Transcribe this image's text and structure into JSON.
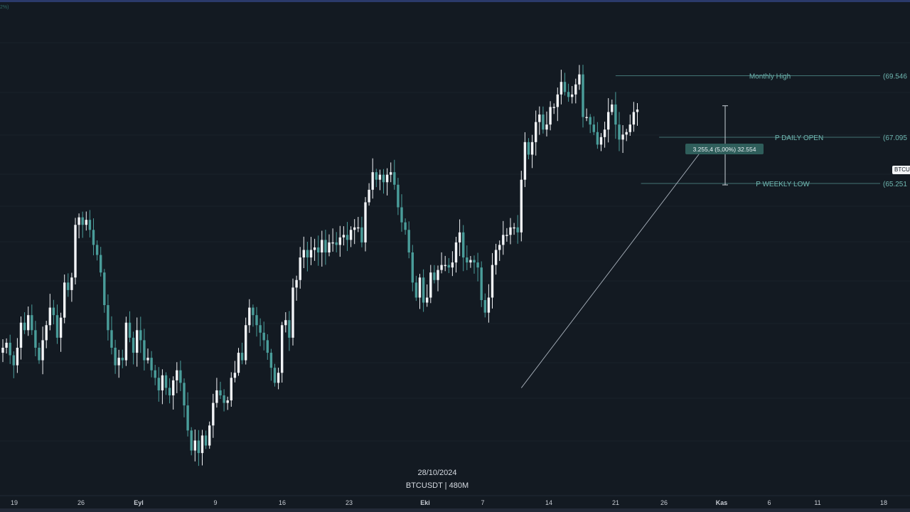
{
  "corner_label": "2%)",
  "watermark": {
    "date": "28/10/2024",
    "symbol": "BTCUSDT | 480M"
  },
  "symbol_badge": "BTCUSDT",
  "colors": {
    "background": "#131a22",
    "bull_candle": "#f2f4f7",
    "bear_candle": "#4a9d9a",
    "level_line": "#5fa8a3",
    "level_text": "#6fb7b1",
    "measure_box": "#2f5e5b",
    "axis_text": "#c7ccd3"
  },
  "chart_data": {
    "type": "candlestick",
    "symbol": "BTCUSDT",
    "interval": "480M",
    "x_axis_ticks": [
      "19",
      "26",
      "Eyl",
      "9",
      "16",
      "23",
      "Eki",
      "7",
      "14",
      "21",
      "26",
      "Kas",
      "6",
      "11",
      "18"
    ],
    "levels": [
      {
        "name": "Monthly High",
        "value_label": "(69.546"
      },
      {
        "name": "P DAILY OPEN",
        "value_label": "(67.095"
      },
      {
        "name": "P WEEKLY LOW",
        "value_label": "(65.251"
      }
    ],
    "measure_label": "3.255,4 (5,00%) 32.554",
    "trendline": {
      "from": 57100,
      "to": 66800
    },
    "ylim": [
      53000,
      72000
    ],
    "closes": [
      58700,
      58900,
      58400,
      58000,
      58700,
      59700,
      59400,
      60000,
      59400,
      58700,
      58200,
      59000,
      59600,
      60300,
      60000,
      59100,
      59900,
      61300,
      61000,
      61500,
      63600,
      63900,
      63600,
      63800,
      63400,
      62800,
      62400,
      61700,
      60400,
      59400,
      58700,
      58000,
      58300,
      58200,
      59700,
      59100,
      58500,
      59400,
      59000,
      58200,
      58300,
      57800,
      57500,
      57000,
      57600,
      57100,
      56800,
      57400,
      57800,
      57300,
      56400,
      55400,
      54600,
      55000,
      54500,
      55200,
      54800,
      55600,
      56500,
      57000,
      56800,
      56500,
      56600,
      57500,
      57700,
      58500,
      58200,
      59600,
      60300,
      60000,
      59600,
      59300,
      59000,
      58500,
      57900,
      57300,
      57700,
      59600,
      59800,
      59100,
      61100,
      61400,
      62300,
      62600,
      62300,
      62600,
      62700,
      62500,
      63000,
      62500,
      62900,
      62900,
      62800,
      63100,
      63200,
      63000,
      63400,
      63500,
      63500,
      62900,
      64500,
      65000,
      65700,
      65400,
      65600,
      65300,
      65600,
      65700,
      65200,
      64300,
      63700,
      63400,
      62500,
      61300,
      60700,
      61500,
      60500,
      60700,
      61700,
      61400,
      61800,
      62000,
      62000,
      61900,
      62100,
      62900,
      63300,
      62300,
      62100,
      62200,
      62100,
      61900,
      60600,
      60100,
      60700,
      62000,
      62600,
      62800,
      63200,
      63200,
      63500,
      63500,
      63300,
      65400,
      66900,
      66400,
      66900,
      67700,
      68000,
      67400,
      67600,
      68300,
      68300,
      68800,
      69300,
      68900,
      68700,
      68800,
      69200,
      69600,
      67900,
      67900,
      67600,
      67300,
      66800,
      67100,
      67400,
      68100,
      68400,
      67600,
      67000,
      67200,
      67300,
      67600,
      68100,
      68200
    ]
  }
}
